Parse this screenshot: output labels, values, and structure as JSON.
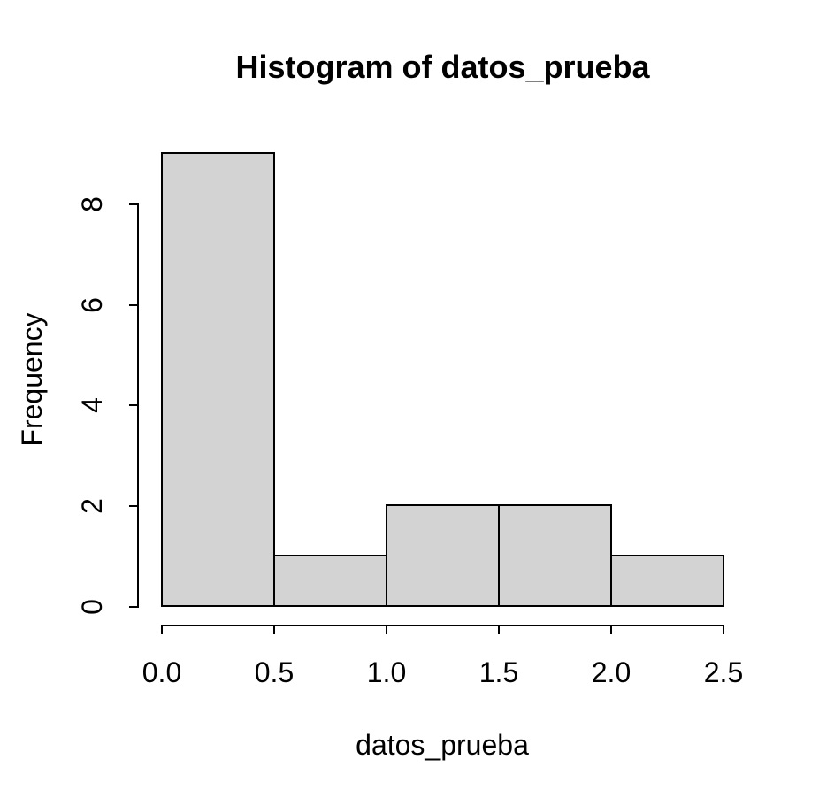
{
  "chart_data": {
    "type": "bar",
    "subtype": "histogram",
    "title": "Histogram of datos_prueba",
    "xlabel": "datos_prueba",
    "ylabel": "Frequency",
    "bins": [
      {
        "range": [
          0.0,
          0.5
        ],
        "count": 9
      },
      {
        "range": [
          0.5,
          1.0
        ],
        "count": 1
      },
      {
        "range": [
          1.0,
          1.5
        ],
        "count": 2
      },
      {
        "range": [
          1.5,
          2.0
        ],
        "count": 2
      },
      {
        "range": [
          2.0,
          2.5
        ],
        "count": 1
      }
    ],
    "x_ticks": [
      {
        "value": 0.0,
        "label": "0.0"
      },
      {
        "value": 0.5,
        "label": "0.5"
      },
      {
        "value": 1.0,
        "label": "1.0"
      },
      {
        "value": 1.5,
        "label": "1.5"
      },
      {
        "value": 2.0,
        "label": "2.0"
      },
      {
        "value": 2.5,
        "label": "2.5"
      }
    ],
    "y_ticks": [
      {
        "value": 0,
        "label": "0"
      },
      {
        "value": 2,
        "label": "2"
      },
      {
        "value": 4,
        "label": "4"
      },
      {
        "value": 6,
        "label": "6"
      },
      {
        "value": 8,
        "label": "8"
      }
    ],
    "xlim": [
      0.0,
      2.5
    ],
    "ylim": [
      0,
      9
    ],
    "grid": false,
    "legend": "none",
    "colors": {
      "bar_fill": "#d3d3d3",
      "bar_stroke": "#000000",
      "axis": "#000000",
      "text": "#000000",
      "background": "#ffffff"
    }
  }
}
